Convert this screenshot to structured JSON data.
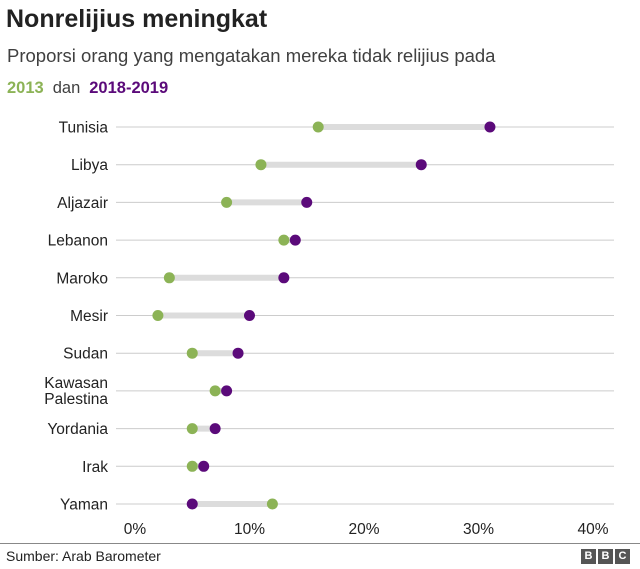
{
  "header": {
    "title": "Nonrelijius meningkat",
    "subtitle": "Proporsi orang yang mengatakan mereka tidak relijius pada",
    "legend_2013": "2013",
    "legend_sep": "dan",
    "legend_2018": "2018-2019"
  },
  "colors": {
    "series_2013": "#8cb356",
    "series_2018": "#5b0a7a",
    "connector": "#dcdcdc",
    "gridline": "#cccccc",
    "text": "#222222"
  },
  "footer": {
    "source": "Sumber: Arab Barometer",
    "logo_letters": [
      "B",
      "B",
      "C"
    ]
  },
  "chart_data": {
    "type": "dumbbell",
    "categories": [
      [
        "Tunisia"
      ],
      [
        "Libya"
      ],
      [
        "Aljazair"
      ],
      [
        "Lebanon"
      ],
      [
        "Maroko"
      ],
      [
        "Mesir"
      ],
      [
        "Sudan"
      ],
      [
        "Kawasan",
        "Palestina"
      ],
      [
        "Yordania"
      ],
      [
        "Irak"
      ],
      [
        "Yaman"
      ]
    ],
    "series": [
      {
        "name": "2013",
        "values": [
          16,
          11,
          8,
          13,
          3,
          2,
          5,
          7,
          5,
          5,
          12
        ]
      },
      {
        "name": "2018-2019",
        "values": [
          31,
          25,
          15,
          14,
          13,
          10,
          9,
          8,
          7,
          6,
          5
        ]
      }
    ],
    "xlim": [
      0,
      40
    ],
    "xticks": [
      "0%",
      "10%",
      "20%",
      "30%",
      "40%"
    ],
    "grid": true,
    "legend": "top-left"
  }
}
